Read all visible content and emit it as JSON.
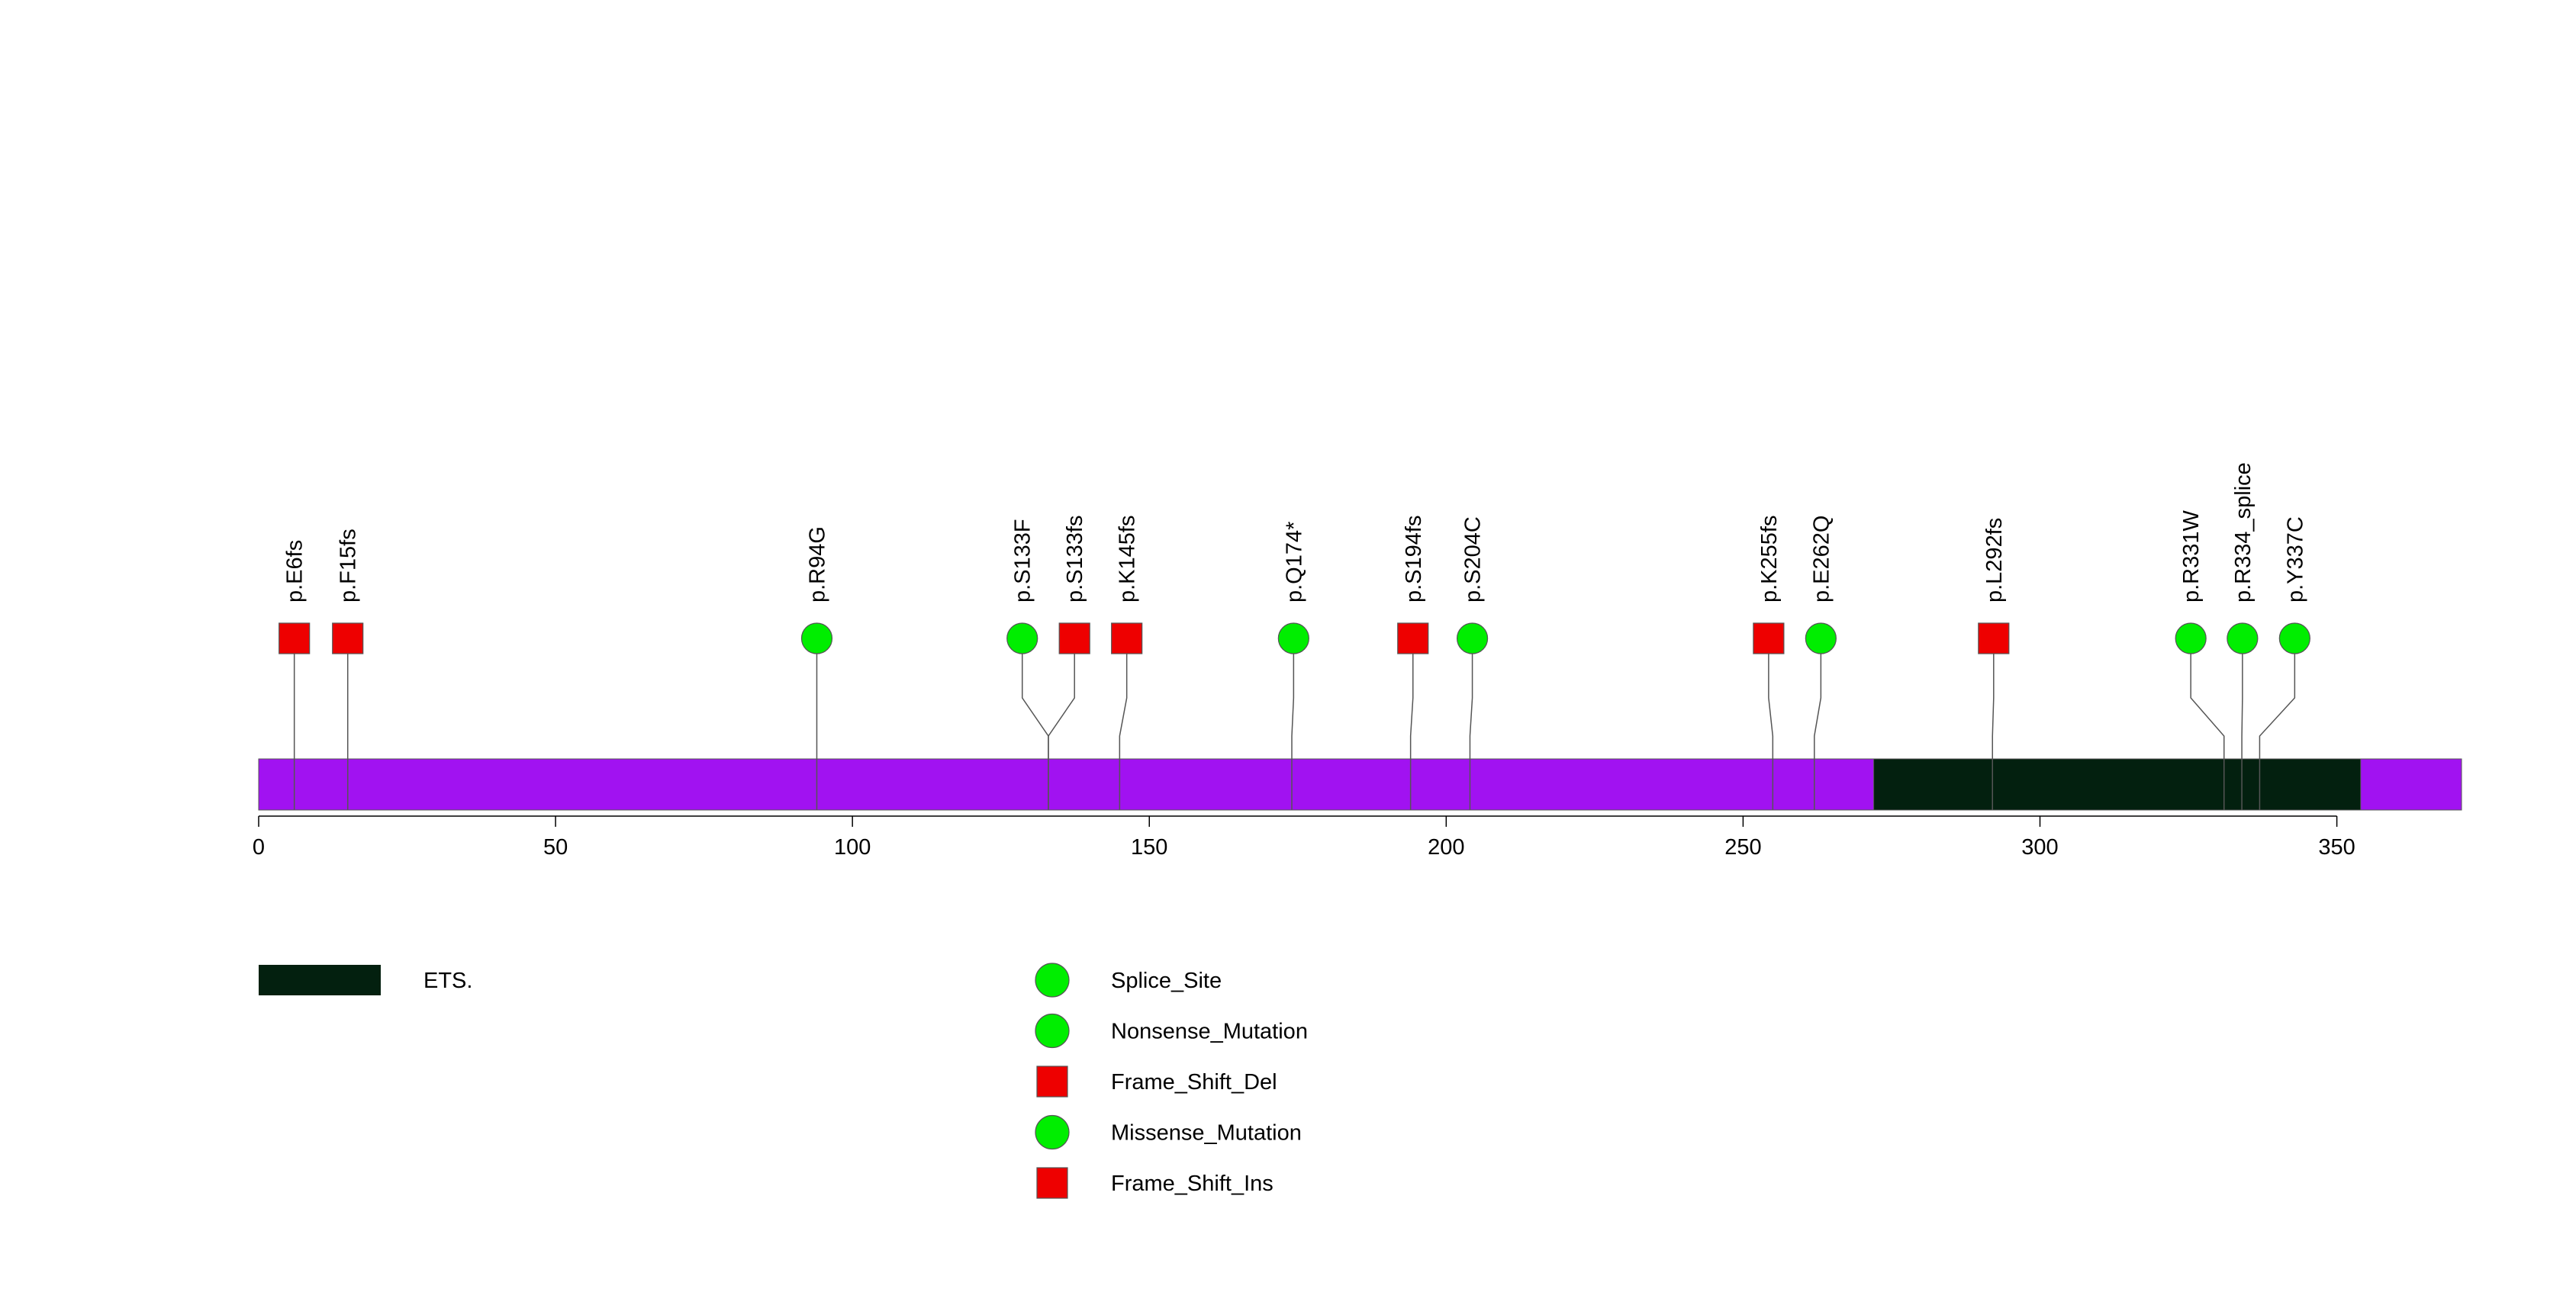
{
  "colors": {
    "protein": "#a112f1",
    "domain_ets": "#03200f",
    "green_marker": "#00ee00",
    "red_marker": "#ee0000",
    "line": "#555555"
  },
  "chart_data": {
    "type": "lollipop",
    "title": "",
    "xlabel": "",
    "ylabel": "",
    "protein_length": 371,
    "xlim": [
      0,
      371
    ],
    "ticks": [
      0,
      50,
      100,
      150,
      200,
      250,
      300,
      350
    ],
    "tick_labels": [
      "0",
      "50",
      "100",
      "150",
      "200",
      "250",
      "300",
      "350"
    ],
    "domains": [
      {
        "name": "ETS.",
        "start": 272,
        "end": 354,
        "color": "#03200f"
      }
    ],
    "mutations": [
      {
        "label": "p.E6fs",
        "position": 6,
        "display_position": 6,
        "shape": "square",
        "color": "#ee0000"
      },
      {
        "label": "p.F15fs",
        "position": 15,
        "display_position": 15,
        "shape": "square",
        "color": "#ee0000"
      },
      {
        "label": "p.R94G",
        "position": 94,
        "display_position": 94,
        "shape": "circle",
        "color": "#00ee00"
      },
      {
        "label": "p.S133F",
        "position": 133,
        "display_position": 128.6,
        "shape": "circle",
        "color": "#00ee00"
      },
      {
        "label": "p.S133fs",
        "position": 133,
        "display_position": 137.4,
        "shape": "square",
        "color": "#ee0000"
      },
      {
        "label": "p.K145fs",
        "position": 145,
        "display_position": 146.2,
        "shape": "square",
        "color": "#ee0000"
      },
      {
        "label": "p.Q174*",
        "position": 174,
        "display_position": 174.3,
        "shape": "circle",
        "color": "#00ee00"
      },
      {
        "label": "p.S194fs",
        "position": 194,
        "display_position": 194.4,
        "shape": "square",
        "color": "#ee0000"
      },
      {
        "label": "p.S204C",
        "position": 204,
        "display_position": 204.4,
        "shape": "circle",
        "color": "#00ee00"
      },
      {
        "label": "p.K255fs",
        "position": 255,
        "display_position": 254.3,
        "shape": "square",
        "color": "#ee0000"
      },
      {
        "label": "p.E262Q",
        "position": 262,
        "display_position": 263.1,
        "shape": "circle",
        "color": "#00ee00"
      },
      {
        "label": "p.L292fs",
        "position": 292,
        "display_position": 292.2,
        "shape": "square",
        "color": "#ee0000"
      },
      {
        "label": "p.R331W",
        "position": 331,
        "display_position": 325.4,
        "shape": "circle",
        "color": "#00ee00"
      },
      {
        "label": "p.R334_splice",
        "position": 334,
        "display_position": 334.1,
        "shape": "circle",
        "color": "#00ee00"
      },
      {
        "label": "p.Y337C",
        "position": 337,
        "display_position": 342.9,
        "shape": "circle",
        "color": "#00ee00"
      }
    ],
    "legend_domains": [
      {
        "name": "ETS.",
        "color": "#03200f"
      }
    ],
    "legend_mutations": [
      {
        "name": "Splice_Site",
        "shape": "circle",
        "color": "#00ee00"
      },
      {
        "name": "Nonsense_Mutation",
        "shape": "circle",
        "color": "#00ee00"
      },
      {
        "name": "Frame_Shift_Del",
        "shape": "square",
        "color": "#ee0000"
      },
      {
        "name": "Missense_Mutation",
        "shape": "circle",
        "color": "#00ee00"
      },
      {
        "name": "Frame_Shift_Ins",
        "shape": "square",
        "color": "#ee0000"
      }
    ]
  }
}
